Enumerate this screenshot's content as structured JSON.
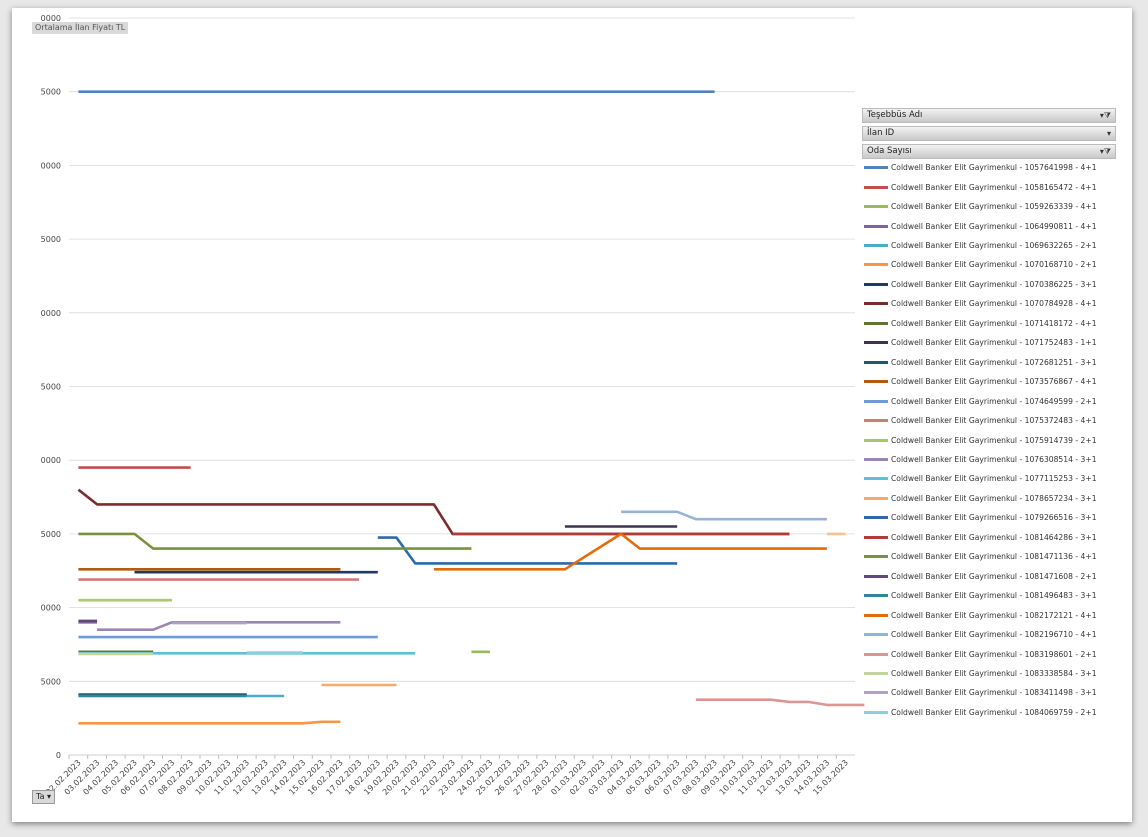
{
  "header": {
    "field_label": "Ortalama İlan Fiyatı TL"
  },
  "filters": [
    {
      "label": "Teşebbüs Adı",
      "icon": "filter-icon"
    },
    {
      "label": "İlan ID",
      "icon": "dropdown-arrow-icon"
    },
    {
      "label": "Oda Sayısı",
      "icon": "filter-icon"
    }
  ],
  "axis_field_button": {
    "label": "Ta",
    "icon": "dropdown-arrow-icon"
  },
  "chart_data": {
    "type": "line",
    "title": "",
    "xlabel": "",
    "ylabel": "",
    "grid": true,
    "legend_position": "right",
    "y_ticks": [
      "0",
      "5000",
      "0000",
      "5000",
      "0000",
      "5000",
      "0000",
      "5000",
      "0000",
      "5000",
      "0000"
    ],
    "ylim": [
      0,
      10
    ],
    "categories": [
      "02.02.2023",
      "03.02.2023",
      "04.02.2023",
      "05.02.2023",
      "06.02.2023",
      "07.02.2023",
      "08.02.2023",
      "09.02.2023",
      "10.02.2023",
      "11.02.2023",
      "12.02.2023",
      "13.02.2023",
      "14.02.2023",
      "15.02.2023",
      "16.02.2023",
      "17.02.2023",
      "18.02.2023",
      "19.02.2023",
      "20.02.2023",
      "21.02.2023",
      "22.02.2023",
      "23.02.2023",
      "24.02.2023",
      "25.02.2023",
      "26.02.2023",
      "27.02.2023",
      "28.02.2023",
      "01.03.2023",
      "02.03.2023",
      "03.03.2023",
      "04.03.2023",
      "05.03.2023",
      "06.03.2023",
      "07.03.2023",
      "08.03.2023",
      "09.03.2023",
      "10.03.2023",
      "11.03.2023",
      "12.03.2023",
      "13.03.2023",
      "14.03.2023",
      "15.03.2023"
    ],
    "series": [
      {
        "name": "Coldwell Banker Elit Gayrimenkul - 1057641998 - 4+1",
        "color": "#4f81bd",
        "points": [
          [
            0,
            9
          ],
          [
            34,
            9
          ]
        ]
      },
      {
        "name": "Coldwell Banker Elit Gayrimenkul - 1058165472 - 4+1",
        "color": "#c0504d",
        "points": [
          [
            0,
            3.9
          ],
          [
            6,
            3.9
          ]
        ]
      },
      {
        "name": "Coldwell Banker Elit Gayrimenkul - 1059263339 - 4+1",
        "color": "#9bbb59",
        "points": [
          [
            21,
            1.4
          ],
          [
            22,
            1.4
          ]
        ]
      },
      {
        "name": "Coldwell Banker Elit Gayrimenkul - 1064990811 - 4+1",
        "color": "#8064a2",
        "points": [
          [
            0,
            1.8
          ],
          [
            1,
            1.8
          ]
        ]
      },
      {
        "name": "Coldwell Banker Elit Gayrimenkul - 1069632265 - 2+1",
        "color": "#4bacc6",
        "points": [
          [
            9,
            0.8
          ],
          [
            11,
            0.8
          ]
        ]
      },
      {
        "name": "Coldwell Banker Elit Gayrimenkul - 1070168710 - 2+1",
        "color": "#f79646",
        "points": [
          [
            0,
            0.43
          ],
          [
            12,
            0.43
          ],
          [
            13,
            0.45
          ],
          [
            14,
            0.45
          ]
        ]
      },
      {
        "name": "Coldwell Banker Elit Gayrimenkul - 1070386225 - 3+1",
        "color": "#1f3864",
        "points": [
          [
            3,
            2.48
          ],
          [
            16,
            2.48
          ]
        ]
      },
      {
        "name": "Coldwell Banker Elit Gayrimenkul - 1070784928 - 4+1",
        "color": "#7b2c2c",
        "points": [
          [
            0,
            3.6
          ],
          [
            1,
            3.4
          ],
          [
            19,
            3.4
          ],
          [
            20,
            3.0
          ],
          [
            38,
            3.0
          ]
        ]
      },
      {
        "name": "Coldwell Banker Elit Gayrimenkul - 1071418172 - 4+1",
        "color": "#5f7530",
        "points": [
          [
            0,
            1.4
          ],
          [
            4,
            1.4
          ]
        ]
      },
      {
        "name": "Coldwell Banker Elit Gayrimenkul - 1071752483 - 1+1",
        "color": "#3f3151",
        "points": [
          [
            26,
            3.1
          ],
          [
            32,
            3.1
          ]
        ]
      },
      {
        "name": "Coldwell Banker Elit Gayrimenkul - 1072681251 - 3+1",
        "color": "#205867",
        "points": [
          [
            0,
            0.82
          ],
          [
            9,
            0.82
          ]
        ]
      },
      {
        "name": "Coldwell Banker Elit Gayrimenkul - 1073576867 - 4+1",
        "color": "#b45a0f",
        "points": [
          [
            0,
            2.52
          ],
          [
            14,
            2.52
          ]
        ]
      },
      {
        "name": "Coldwell Banker Elit Gayrimenkul - 1074649599 - 2+1",
        "color": "#6d9bd4",
        "points": [
          [
            0,
            1.6
          ],
          [
            16,
            1.6
          ]
        ]
      },
      {
        "name": "Coldwell Banker Elit Gayrimenkul - 1075372483 - 4+1",
        "color": "#d07a78",
        "points": [
          [
            0,
            2.38
          ],
          [
            15,
            2.38
          ]
        ]
      },
      {
        "name": "Coldwell Banker Elit Gayrimenkul - 1075914739 - 2+1",
        "color": "#a7c76a",
        "points": [
          [
            0,
            2.1
          ],
          [
            5,
            2.1
          ]
        ]
      },
      {
        "name": "Coldwell Banker Elit Gayrimenkul - 1076308514 - 3+1",
        "color": "#9a86b5",
        "points": [
          [
            1,
            1.7
          ],
          [
            4,
            1.7
          ],
          [
            5,
            1.8
          ],
          [
            14,
            1.8
          ]
        ]
      },
      {
        "name": "Coldwell Banker Elit Gayrimenkul - 1077115253 - 3+1",
        "color": "#5ec0d6",
        "points": [
          [
            0,
            1.38
          ],
          [
            18,
            1.38
          ]
        ]
      },
      {
        "name": "Coldwell Banker Elit Gayrimenkul - 1078657234 - 3+1",
        "color": "#f5a96a",
        "points": [
          [
            13,
            0.95
          ],
          [
            17,
            0.95
          ]
        ]
      },
      {
        "name": "Coldwell Banker Elit Gayrimenkul - 1079266516 - 3+1",
        "color": "#2e6aa8",
        "points": [
          [
            16,
            2.95
          ],
          [
            17,
            2.95
          ],
          [
            18,
            2.6
          ],
          [
            32,
            2.6
          ]
        ]
      },
      {
        "name": "Coldwell Banker Elit Gayrimenkul - 1081464286 - 3+1",
        "color": "#b33b36",
        "points": [
          [
            20,
            3.0
          ],
          [
            38,
            3.0
          ]
        ]
      },
      {
        "name": "Coldwell Banker Elit Gayrimenkul - 1081471136 - 4+1",
        "color": "#77933c",
        "points": [
          [
            0,
            3.0
          ],
          [
            3,
            3.0
          ],
          [
            4,
            2.8
          ],
          [
            21,
            2.8
          ]
        ]
      },
      {
        "name": "Coldwell Banker Elit Gayrimenkul - 1081471608 - 2+1",
        "color": "#5f497a",
        "points": [
          [
            0,
            1.82
          ],
          [
            1,
            1.82
          ]
        ]
      },
      {
        "name": "Coldwell Banker Elit Gayrimenkul - 1081496483 - 3+1",
        "color": "#31859c",
        "points": [
          [
            0,
            0.8
          ],
          [
            9,
            0.8
          ]
        ]
      },
      {
        "name": "Coldwell Banker Elit Gayrimenkul - 1082172121 - 4+1",
        "color": "#e36c09",
        "points": [
          [
            19,
            2.52
          ],
          [
            26,
            2.52
          ],
          [
            29,
            3.0
          ],
          [
            30,
            2.8
          ],
          [
            40,
            2.8
          ]
        ]
      },
      {
        "name": "Coldwell Banker Elit Gayrimenkul - 1082196710 - 4+1",
        "color": "#95b3d7",
        "points": [
          [
            29,
            3.3
          ],
          [
            32,
            3.3
          ],
          [
            33,
            3.2
          ],
          [
            40,
            3.2
          ]
        ]
      },
      {
        "name": "Coldwell Banker Elit Gayrimenkul - 1083198601 - 2+1",
        "color": "#d99694",
        "points": [
          [
            33,
            0.75
          ],
          [
            37,
            0.75
          ],
          [
            38,
            0.72
          ],
          [
            39,
            0.72
          ],
          [
            40,
            0.68
          ],
          [
            42,
            0.68
          ]
        ]
      },
      {
        "name": "Coldwell Banker Elit Gayrimenkul - 1083338584 - 3+1",
        "color": "#c3d69b",
        "points": [
          [
            0,
            1.37
          ],
          [
            4,
            1.37
          ]
        ]
      },
      {
        "name": "Coldwell Banker Elit Gayrimenkul - 1083411498 - 3+1",
        "color": "#b2a1c7",
        "points": [
          [
            5,
            1.79
          ],
          [
            9,
            1.79
          ]
        ]
      },
      {
        "name": "Coldwell Banker Elit Gayrimenkul - 1084069759 - 2+1",
        "color": "#92cddc",
        "points": [
          [
            9,
            1.39
          ],
          [
            12,
            1.39
          ]
        ]
      }
    ],
    "extra_marks": [
      {
        "color": "#fac090",
        "points": [
          [
            40,
            3.0
          ],
          [
            41,
            3.0
          ]
        ]
      }
    ]
  }
}
